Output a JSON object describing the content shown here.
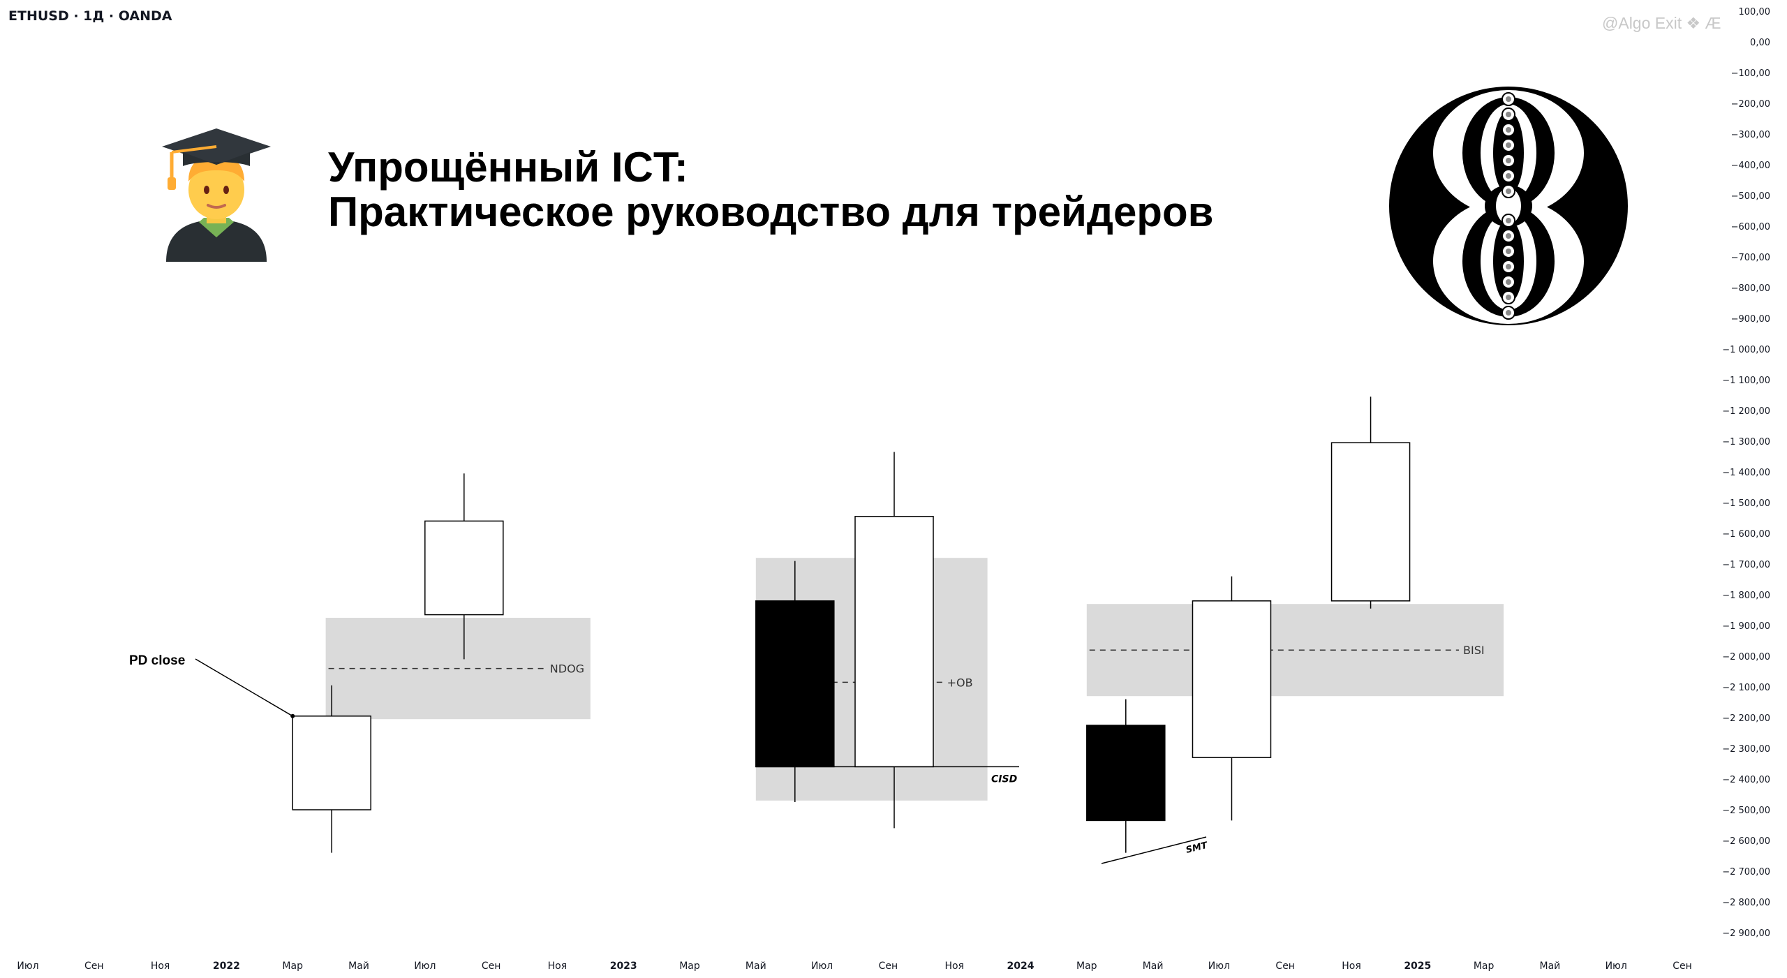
{
  "header": {
    "ticker": "ETHUSD · 1Д · OANDA",
    "watermark": "@Algo Exit ❖ Æ"
  },
  "title": {
    "line1": "Упрощённый ICT:",
    "line2": "Практическое руководство для трейдеров"
  },
  "icons": {
    "emoji": "graduate-emoji-icon",
    "logo": "circular-geometric-logo-icon"
  },
  "chart_data": {
    "type": "candlestick",
    "y_axis": {
      "ticks": [
        100,
        0,
        -100,
        -200,
        -300,
        -400,
        -500,
        -600,
        -700,
        -800,
        -900,
        -1000,
        -1100,
        -1200,
        -1300,
        -1400,
        -1500,
        -1600,
        -1700,
        -1800,
        -1900,
        -2000,
        -2100,
        -2200,
        -2300,
        -2400,
        -2500,
        -2600,
        -2700,
        -2800,
        -2900
      ],
      "tick_labels": [
        "100,00",
        "0,00",
        "−100,00",
        "−200,00",
        "−300,00",
        "−400,00",
        "−500,00",
        "−600,00",
        "−700,00",
        "−800,00",
        "−900,00",
        "−1 000,00",
        "−1 100,00",
        "−1 200,00",
        "−1 300,00",
        "−1 400,00",
        "−1 500,00",
        "−1 600,00",
        "−1 700,00",
        "−1 800,00",
        "−1 900,00",
        "−2 000,00",
        "−2 100,00",
        "−2 200,00",
        "−2 300,00",
        "−2 400,00",
        "−2 500,00",
        "−2 600,00",
        "−2 700,00",
        "−2 800,00",
        "−2 900,00"
      ],
      "range": [
        100,
        -2900
      ]
    },
    "x_axis": {
      "tick_labels": [
        "Июл",
        "Сен",
        "Ноя",
        "2022",
        "Мар",
        "Май",
        "Июл",
        "Сен",
        "Ноя",
        "2023",
        "Мар",
        "Май",
        "Июл",
        "Сен",
        "Ноя",
        "2024",
        "Мар",
        "Май",
        "Июл",
        "Сен",
        "Ноя",
        "2025",
        "Мар",
        "Май",
        "Июл",
        "Сен"
      ],
      "bold_labels": [
        "2022",
        "2023",
        "2024",
        "2025"
      ]
    },
    "zones": [
      {
        "label": "NDOG",
        "x_from": 4.5,
        "x_to": 8.5,
        "top": -1875,
        "bottom": -2205,
        "mid": -2040
      },
      {
        "label": "+OB",
        "x_from": 11.0,
        "x_to": 14.5,
        "top": -1680,
        "bottom": -2470,
        "mid": -2085
      },
      {
        "label": "BISI",
        "x_from": 16.0,
        "x_to": 22.3,
        "top": -1830,
        "bottom": -2130,
        "mid": -1980
      }
    ],
    "candles": [
      {
        "x": 4.0,
        "open": -2500,
        "close": -2195,
        "high": -2095,
        "low": -2640,
        "color": "white"
      },
      {
        "x": 6.0,
        "open": -1865,
        "close": -1560,
        "high": -1405,
        "low": -2010,
        "color": "white"
      },
      {
        "x": 11.0,
        "open": -1820,
        "close": -2360,
        "high": -1690,
        "low": -2475,
        "color": "black"
      },
      {
        "x": 12.5,
        "open": -2360,
        "close": -1545,
        "high": -1335,
        "low": -2560,
        "color": "white"
      },
      {
        "x": 16.0,
        "open": -2225,
        "close": -2535,
        "high": -2140,
        "low": -2640,
        "color": "black"
      },
      {
        "x": 17.6,
        "open": -2330,
        "close": -1820,
        "high": -1740,
        "low": -2535,
        "color": "white"
      },
      {
        "x": 19.7,
        "open": -1820,
        "close": -1305,
        "high": -1155,
        "low": -1845,
        "color": "white"
      }
    ],
    "annotations": [
      {
        "text": "PD close",
        "type": "callout",
        "x": 3.55,
        "value": -2195
      },
      {
        "text": "CISD",
        "type": "level",
        "value": -2360
      },
      {
        "text": "SMT",
        "type": "divergence-line"
      }
    ]
  }
}
